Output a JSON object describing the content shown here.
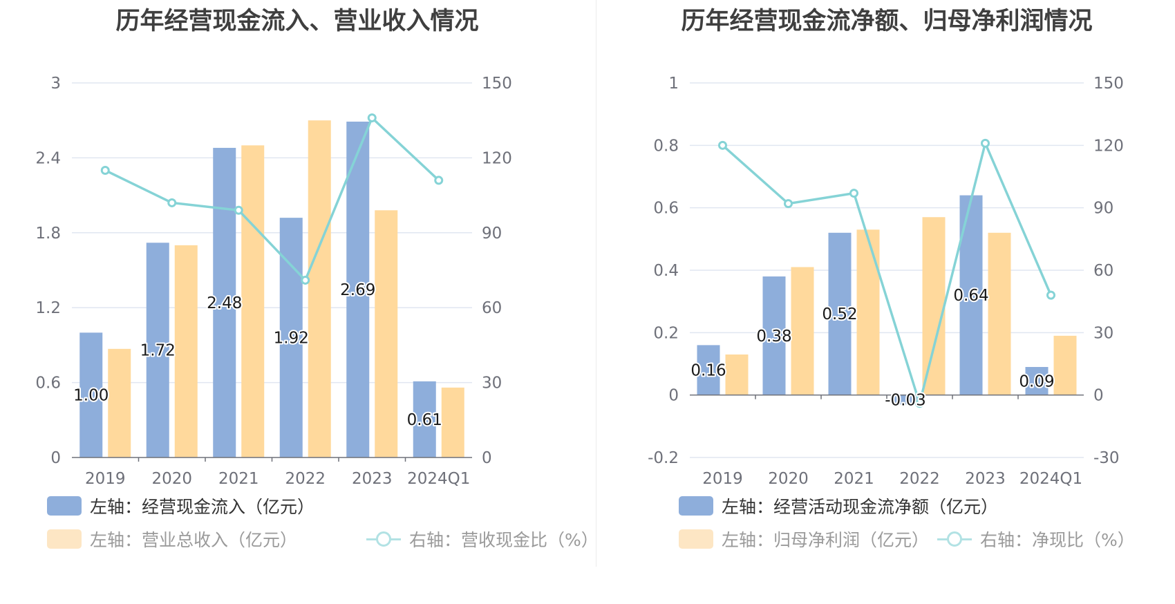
{
  "colors": {
    "bar_blue": "#8eaedb",
    "bar_orange": "#ffd99c",
    "line_teal": "#85d3d6",
    "legend_blue": "#8eaedb",
    "legend_orange": "#fde6c4",
    "legend_teal": "#b2e2e4",
    "legend_text_active": "#333333",
    "legend_text_muted": "#9a9a9a",
    "grid": "#e0e6f1",
    "axis": "#6e7079"
  },
  "left": {
    "title": "历年经营现金流入、营业收入情况",
    "legend": [
      {
        "label": "左轴：经营现金流入（亿元）",
        "kind": "bar",
        "color_key": "legend_blue",
        "text_key": "legend_text_active"
      },
      {
        "label": "左轴：营业总收入（亿元）",
        "kind": "bar",
        "color_key": "legend_orange",
        "text_key": "legend_text_muted"
      },
      {
        "label": "右轴：营收现金比（%）",
        "kind": "line",
        "color_key": "legend_teal",
        "text_key": "legend_text_muted"
      }
    ]
  },
  "right": {
    "title": "历年经营现金流净额、归母净利润情况",
    "legend": [
      {
        "label": "左轴：经营活动现金流净额（亿元）",
        "kind": "bar",
        "color_key": "legend_blue",
        "text_key": "legend_text_active"
      },
      {
        "label": "左轴：归母净利润（亿元）",
        "kind": "bar",
        "color_key": "legend_orange",
        "text_key": "legend_text_muted"
      },
      {
        "label": "右轴：净现比（%）",
        "kind": "line",
        "color_key": "legend_teal",
        "text_key": "legend_text_muted"
      }
    ]
  },
  "chart_data": [
    {
      "type": "bar",
      "title": "历年经营现金流入、营业收入情况",
      "categories": [
        "2019",
        "2020",
        "2021",
        "2022",
        "2023",
        "2024Q1"
      ],
      "left_axis": {
        "ticks": [
          "0",
          "0.6",
          "1.2",
          "1.8",
          "2.4",
          "3"
        ],
        "ylim": [
          0,
          3
        ]
      },
      "right_axis": {
        "ticks": [
          "0",
          "30",
          "60",
          "90",
          "120",
          "150"
        ],
        "ylim": [
          0,
          150
        ]
      },
      "series": [
        {
          "name": "左轴：经营现金流入（亿元）",
          "type": "bar",
          "axis": "left",
          "values": [
            1.0,
            1.72,
            2.48,
            1.92,
            2.69,
            0.61
          ],
          "labels": [
            "1.00",
            "1.72",
            "2.48",
            "1.92",
            "2.69",
            "0.61"
          ]
        },
        {
          "name": "左轴：营业总收入（亿元）",
          "type": "bar",
          "axis": "left",
          "values": [
            0.87,
            1.7,
            2.5,
            2.7,
            1.98,
            0.56
          ]
        },
        {
          "name": "右轴：营收现金比（%）",
          "type": "line",
          "axis": "right",
          "values": [
            115,
            102,
            99,
            71,
            136,
            111
          ]
        }
      ],
      "grid": true,
      "legend_position": "bottom"
    },
    {
      "type": "bar",
      "title": "历年经营现金流净额、归母净利润情况",
      "categories": [
        "2019",
        "2020",
        "2021",
        "2022",
        "2023",
        "2024Q1"
      ],
      "left_axis": {
        "ticks": [
          "-0.2",
          "0",
          "0.2",
          "0.4",
          "0.6",
          "0.8",
          "1"
        ],
        "ylim": [
          -0.2,
          1
        ]
      },
      "right_axis": {
        "ticks": [
          "-30",
          "0",
          "30",
          "60",
          "90",
          "120",
          "150"
        ],
        "ylim": [
          -30,
          150
        ]
      },
      "series": [
        {
          "name": "左轴：经营活动现金流净额（亿元）",
          "type": "bar",
          "axis": "left",
          "values": [
            0.16,
            0.38,
            0.52,
            -0.03,
            0.64,
            0.09
          ],
          "labels": [
            "0.16",
            "0.38",
            "0.52",
            "-0.03",
            "0.64",
            "0.09"
          ]
        },
        {
          "name": "左轴：归母净利润（亿元）",
          "type": "bar",
          "axis": "left",
          "values": [
            0.13,
            0.41,
            0.53,
            0.57,
            0.52,
            0.19
          ]
        },
        {
          "name": "右轴：净现比（%）",
          "type": "line",
          "axis": "right",
          "values": [
            120,
            92,
            97,
            -4,
            121,
            48
          ]
        }
      ],
      "grid": true,
      "legend_position": "bottom"
    }
  ]
}
